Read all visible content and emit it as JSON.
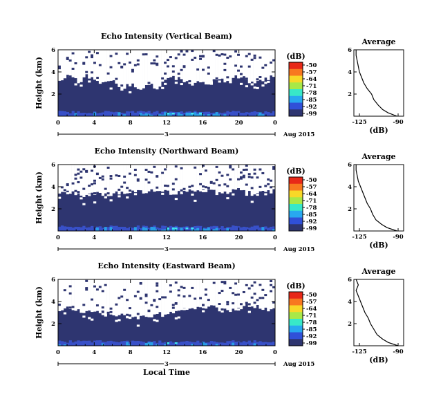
{
  "chart_data": [
    {
      "type": "heatmap",
      "title": "Echo Intensity (Vertical Beam)",
      "ylabel": "Height (km)",
      "y_ticks": [
        "2",
        "4",
        "6"
      ],
      "ylim": [
        0,
        6
      ],
      "x_ticks": [
        "0",
        "4",
        "8",
        "12",
        "16",
        "20",
        "0"
      ],
      "xlim": [
        0,
        24
      ],
      "date_day": "3",
      "date_label": "Aug 2015",
      "colorbar": {
        "unit": "(dB)",
        "ticks": [
          "-50",
          "-57",
          "-64",
          "-71",
          "-78",
          "-85",
          "-92",
          "-99"
        ]
      },
      "cloud_top_km": [
        3.2,
        3.7,
        3.1,
        3.6,
        3.5,
        2.9,
        3.3,
        2.5,
        2.8,
        2.4,
        3.0,
        2.6,
        3.3,
        3.5,
        3.0,
        2.8,
        3.2,
        2.9,
        3.4,
        3.1,
        3.6,
        3.3,
        3.0,
        3.4,
        3.5
      ],
      "profile": {
        "title": "Average",
        "xlabel": "(dB)",
        "x_ticks": [
          "-125",
          "-90"
        ],
        "xlim": [
          -130,
          -85
        ],
        "y_ticks": [
          "2",
          "4",
          "6"
        ],
        "ylim": [
          0,
          6
        ],
        "y": [
          0.0,
          0.3,
          0.6,
          1.0,
          1.5,
          2.0,
          2.5,
          3.0,
          3.5,
          4.0,
          4.5,
          5.0,
          5.5,
          6.0
        ],
        "x": [
          -91,
          -99,
          -104,
          -108,
          -112,
          -114,
          -118,
          -121,
          -123,
          -125,
          -126,
          -127,
          -128,
          -128
        ]
      }
    },
    {
      "type": "heatmap",
      "title": "Echo Intensity (Northward Beam)",
      "ylabel": "Height (km)",
      "y_ticks": [
        "2",
        "4",
        "6"
      ],
      "ylim": [
        0,
        6
      ],
      "x_ticks": [
        "0",
        "4",
        "8",
        "12",
        "16",
        "20",
        "0"
      ],
      "xlim": [
        0,
        24
      ],
      "date_day": "3",
      "date_label": "Aug 2015",
      "colorbar": {
        "unit": "(dB)",
        "ticks": [
          "-50",
          "-57",
          "-64",
          "-71",
          "-78",
          "-85",
          "-92",
          "-99"
        ]
      },
      "cloud_top_km": [
        3.3,
        3.6,
        3.4,
        3.0,
        3.5,
        3.2,
        3.3,
        3.6,
        3.4,
        3.5,
        3.7,
        3.6,
        3.5,
        3.4,
        3.6,
        3.5,
        3.7,
        3.6,
        3.4,
        3.5,
        3.6,
        3.4,
        3.3,
        3.5,
        3.6
      ],
      "profile": {
        "title": "Average",
        "xlabel": "(dB)",
        "x_ticks": [
          "-125",
          "-90"
        ],
        "xlim": [
          -130,
          -85
        ],
        "y_ticks": [
          "2",
          "4",
          "6"
        ],
        "ylim": [
          0,
          6
        ],
        "y": [
          0.0,
          0.3,
          0.6,
          1.0,
          1.5,
          2.0,
          2.5,
          3.0,
          3.5,
          4.0,
          4.5,
          5.0,
          5.5,
          6.0
        ],
        "x": [
          -91,
          -100,
          -105,
          -110,
          -113,
          -115,
          -118,
          -120,
          -122,
          -124,
          -126,
          -127,
          -128,
          -128
        ]
      }
    },
    {
      "type": "heatmap",
      "title": "Echo Intensity (Eastward Beam)",
      "ylabel": "Height (km)",
      "y_ticks": [
        "2",
        "4",
        "6"
      ],
      "ylim": [
        0,
        6
      ],
      "x_ticks": [
        "0",
        "4",
        "8",
        "12",
        "16",
        "20",
        "0"
      ],
      "xlim": [
        0,
        24
      ],
      "date_day": "3",
      "date_label": "Aug 2015",
      "xlabel": "Local Time",
      "colorbar": {
        "unit": "(dB)",
        "ticks": [
          "-50",
          "-57",
          "-64",
          "-71",
          "-78",
          "-85",
          "-92",
          "-99"
        ]
      },
      "cloud_top_km": [
        3.2,
        3.4,
        3.3,
        3.1,
        3.0,
        2.9,
        2.8,
        2.7,
        2.6,
        2.5,
        2.6,
        2.8,
        2.9,
        3.0,
        3.2,
        3.3,
        3.4,
        3.5,
        3.3,
        3.1,
        3.4,
        3.6,
        3.5,
        3.3,
        3.2
      ],
      "profile": {
        "title": "Average",
        "xlabel": "(dB)",
        "x_ticks": [
          "-125",
          "-90"
        ],
        "xlim": [
          -130,
          -85
        ],
        "y_ticks": [
          "2",
          "4",
          "6"
        ],
        "ylim": [
          0,
          6
        ],
        "y": [
          0.0,
          0.3,
          0.6,
          1.0,
          1.5,
          2.0,
          2.5,
          3.0,
          3.5,
          4.0,
          4.5,
          5.0,
          5.5,
          6.0
        ],
        "x": [
          -90,
          -99,
          -104,
          -109,
          -112,
          -115,
          -117,
          -120,
          -122,
          -124,
          -126,
          -128,
          -126,
          -128
        ]
      }
    }
  ],
  "colors": {
    "background": "#2e3570",
    "echo_low": "#3850c8",
    "echo_mid": "#28a0e8",
    "echo_high": "#40e8f0",
    "white": "#ffffff",
    "axis": "#000000",
    "colorbar": [
      "#e82818",
      "#f87820",
      "#f8d828",
      "#a8e848",
      "#38e8c8",
      "#28a8f0",
      "#3050d8",
      "#2e3570"
    ]
  }
}
